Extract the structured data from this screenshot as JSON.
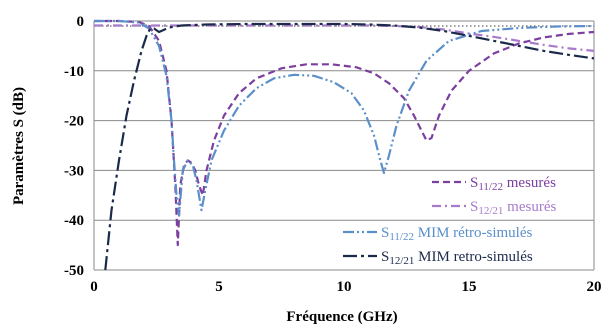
{
  "chart_data": {
    "type": "line",
    "title": "",
    "xlabel": "Fréquence (GHz)",
    "ylabel": "Paramètres S (dB)",
    "xlim": [
      0,
      20
    ],
    "ylim": [
      -50,
      0
    ],
    "xticks": [
      0,
      5,
      10,
      15,
      20
    ],
    "yticks": [
      0,
      -10,
      -20,
      -30,
      -40,
      -50
    ],
    "grid": "horizontal",
    "legend_position": "bottom-right",
    "series": [
      {
        "name_main": "S",
        "name_sub": "11/22",
        "name_rest": " mesurés",
        "color": "#7B3FA0",
        "style": "dashed",
        "x": [
          0,
          1.0,
          1.8,
          2.2,
          2.6,
          2.9,
          3.1,
          3.25,
          3.35,
          3.45,
          3.6,
          3.75,
          3.9,
          4.05,
          4.2,
          4.35,
          4.5,
          4.8,
          5.2,
          5.8,
          6.5,
          7.5,
          8.5,
          9.5,
          10.5,
          11.2,
          11.8,
          12.4,
          12.8,
          13.1,
          13.3,
          13.5,
          13.8,
          14.3,
          15,
          16,
          17,
          18,
          19,
          20
        ],
        "y": [
          0,
          0,
          -0.2,
          -1,
          -4,
          -10,
          -20,
          -33,
          -45,
          -33,
          -29,
          -28,
          -28.5,
          -30,
          -33,
          -35,
          -30,
          -24,
          -19,
          -14.5,
          -11.5,
          -9.5,
          -8.7,
          -8.7,
          -9.3,
          -10.5,
          -12.5,
          -15.5,
          -19,
          -22,
          -24,
          -23.5,
          -19,
          -14,
          -10,
          -6.5,
          -4.5,
          -3.3,
          -2.6,
          -2.2
        ]
      },
      {
        "name_main": "S",
        "name_sub": "12/21",
        "name_rest": " mesurés",
        "color": "#A77BC9",
        "style": "dashdot",
        "x": [
          0,
          2,
          4,
          6,
          8,
          10,
          11,
          12,
          13,
          14,
          15,
          16,
          17,
          18,
          19,
          20
        ],
        "y": [
          -0.9,
          -0.9,
          -0.9,
          -0.9,
          -0.9,
          -0.9,
          -0.9,
          -1.0,
          -1.2,
          -1.7,
          -2.5,
          -3.2,
          -4.0,
          -4.8,
          -5.5,
          -6.0
        ]
      },
      {
        "name_main": "S",
        "name_sub": "11/22",
        "name_rest": " MIM rétro-simulés",
        "color": "#5B8FC9",
        "style": "dashdotdot",
        "x": [
          0,
          1.0,
          1.8,
          2.2,
          2.6,
          2.9,
          3.1,
          3.2,
          3.3,
          3.4,
          3.55,
          3.75,
          3.95,
          4.1,
          4.2,
          4.3,
          4.45,
          4.7,
          5.2,
          5.8,
          6.5,
          7.2,
          8.0,
          8.8,
          9.6,
          10.3,
          10.8,
          11.2,
          11.45,
          11.6,
          11.8,
          12.1,
          12.6,
          13.3,
          14.2,
          15.5,
          17,
          18.5,
          20
        ],
        "y": [
          0,
          0,
          -0.3,
          -1.5,
          -5,
          -11,
          -20,
          -28,
          -35,
          -39,
          -30,
          -28,
          -29,
          -32,
          -35,
          -38,
          -34,
          -28,
          -22,
          -17,
          -13.5,
          -11.5,
          -10.8,
          -11,
          -12.3,
          -14.5,
          -18,
          -23,
          -28,
          -30.5,
          -27,
          -21,
          -14,
          -8,
          -4,
          -2,
          -1.4,
          -1.1,
          -1.0
        ]
      },
      {
        "name_main": "S",
        "name_sub": "12/21",
        "name_rest": " MIM retro-simulés",
        "color": "#1B2A4A",
        "style": "longdashdot",
        "x": [
          0.45,
          0.7,
          1.0,
          1.3,
          1.6,
          1.9,
          2.1,
          2.25,
          2.4,
          2.6,
          3.0,
          3.5,
          4.5,
          6,
          8,
          10,
          11,
          12,
          13,
          14,
          15,
          16,
          17,
          18,
          19,
          20
        ],
        "y": [
          -50,
          -38,
          -28,
          -19,
          -12,
          -6,
          -3,
          -1.5,
          -1.5,
          -2.2,
          -1.3,
          -0.9,
          -0.7,
          -0.6,
          -0.6,
          -0.6,
          -0.7,
          -0.9,
          -1.3,
          -2.0,
          -3.0,
          -4.0,
          -5.0,
          -6.0,
          -6.8,
          -7.5
        ]
      },
      {
        "name": "",
        "color": "#666666",
        "style": "dotted",
        "x": [
          0,
          20
        ],
        "y": [
          -1,
          -1
        ]
      }
    ]
  }
}
